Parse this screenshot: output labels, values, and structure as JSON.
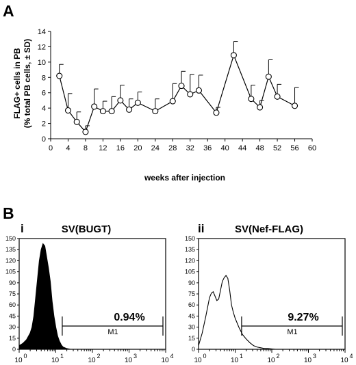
{
  "panels": {
    "A": "A",
    "B": "B"
  },
  "chart_data": [
    {
      "type": "line",
      "ylabel_line1": "FLAG+ cells in PB",
      "ylabel_line2": "(% total PB cells, ± SD)",
      "xlabel": "weeks after injection",
      "xlim": [
        0,
        60
      ],
      "ylim": [
        0,
        14
      ],
      "xticks": [
        0,
        4,
        8,
        12,
        16,
        20,
        24,
        28,
        32,
        36,
        40,
        44,
        48,
        52,
        56,
        60
      ],
      "yticks": [
        0,
        2,
        4,
        6,
        8,
        10,
        12,
        14
      ],
      "grid": false,
      "x": [
        2,
        4,
        6,
        8,
        10,
        12,
        14,
        16,
        18,
        20,
        24,
        28,
        30,
        32,
        34,
        38,
        42,
        46,
        48,
        50,
        52,
        56
      ],
      "y": [
        8.2,
        3.7,
        2.2,
        0.9,
        4.2,
        3.6,
        3.6,
        5.0,
        3.8,
        4.7,
        3.6,
        4.9,
        6.9,
        5.8,
        6.3,
        3.4,
        10.9,
        5.2,
        4.1,
        8.1,
        5.5,
        4.3
      ],
      "sd": [
        1.5,
        2.2,
        1.3,
        0.8,
        2.3,
        1.3,
        1.9,
        2.0,
        1.4,
        1.4,
        1.6,
        2.3,
        1.9,
        2.6,
        2.0,
        0.7,
        1.8,
        1.8,
        0.9,
        2.2,
        1.6,
        2.4
      ]
    },
    {
      "type": "area",
      "roman": "i",
      "title": "SV(BUGT)",
      "filled": true,
      "color": "#000000",
      "x_scale": "log",
      "xlim": [
        1,
        10000
      ],
      "xticks": [
        "10",
        "10",
        "10",
        "10",
        "10"
      ],
      "xtick_exponents": [
        "0",
        "1",
        "2",
        "3",
        "4"
      ],
      "ylim": [
        0,
        150
      ],
      "yticks": [
        0,
        15,
        30,
        45,
        60,
        75,
        90,
        105,
        120,
        135,
        150
      ],
      "gate_label": "M1",
      "gate_range": [
        15,
        10000
      ],
      "percent": "0.94%",
      "log_x": [
        0,
        0.1,
        0.2,
        0.3,
        0.35,
        0.4,
        0.45,
        0.5,
        0.55,
        0.6,
        0.65,
        0.7,
        0.75,
        0.8,
        0.85,
        0.9,
        0.95,
        1.0,
        1.05,
        1.1,
        1.15,
        1.2,
        1.3,
        1.4,
        1.5,
        4
      ],
      "counts": [
        5,
        8,
        13,
        22,
        30,
        45,
        70,
        95,
        120,
        135,
        143,
        140,
        125,
        110,
        92,
        65,
        45,
        30,
        18,
        11,
        6,
        3,
        1,
        0,
        0,
        0
      ]
    },
    {
      "type": "area",
      "roman": "ii",
      "title": "SV(Nef-FLAG)",
      "filled": false,
      "color": "#000000",
      "x_scale": "log",
      "xlim": [
        1,
        10000
      ],
      "xticks": [
        "10",
        "10",
        "10",
        "10",
        "10"
      ],
      "xtick_exponents": [
        "0",
        "1",
        "2",
        "3",
        "4"
      ],
      "ylim": [
        0,
        150
      ],
      "yticks": [
        0,
        15,
        30,
        45,
        60,
        75,
        90,
        105,
        120,
        135,
        150
      ],
      "gate_label": "M1",
      "gate_range": [
        15,
        10000
      ],
      "percent": "9.27%",
      "log_x": [
        0,
        0.1,
        0.2,
        0.3,
        0.35,
        0.4,
        0.45,
        0.5,
        0.55,
        0.6,
        0.65,
        0.7,
        0.75,
        0.8,
        0.85,
        0.9,
        0.95,
        1.0,
        1.05,
        1.1,
        1.2,
        1.3,
        1.4,
        1.5,
        1.6,
        1.7,
        1.8,
        1.9,
        2.1,
        2.4,
        4
      ],
      "counts": [
        5,
        22,
        45,
        70,
        76,
        78,
        72,
        66,
        68,
        80,
        92,
        97,
        100,
        96,
        80,
        60,
        50,
        42,
        36,
        30,
        20,
        14,
        9,
        5,
        3,
        2,
        1,
        1,
        0,
        0,
        0
      ]
    }
  ]
}
